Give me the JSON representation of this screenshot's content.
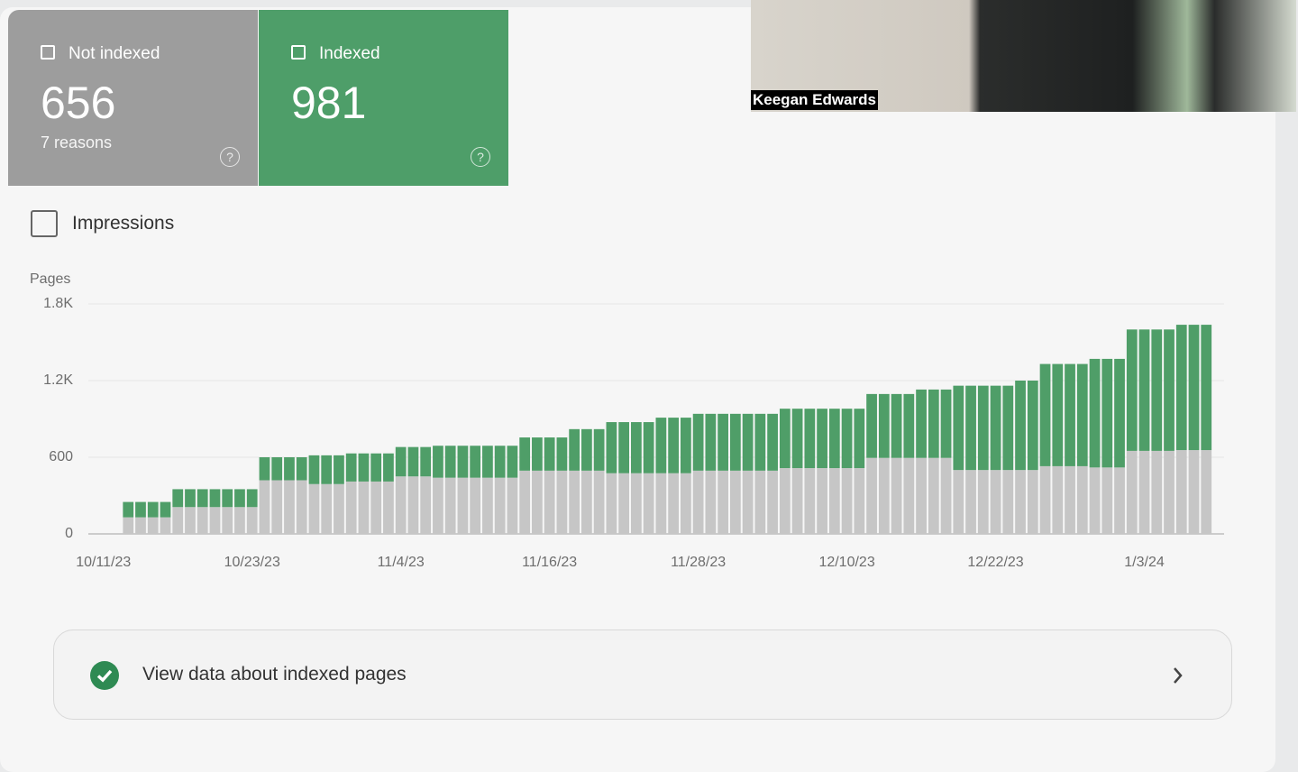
{
  "video_overlay": {
    "name": "Keegan Edwards"
  },
  "summary": {
    "not_indexed": {
      "value": 656,
      "note": "7 reasons"
    },
    "indexed": {
      "value": 981
    }
  },
  "impressions_toggle": {
    "label": "Impressions"
  },
  "chart_data": {
    "type": "stacked_bar",
    "y_axis_label": "Pages",
    "x": [
      "2023-10-13",
      "2023-10-14",
      "2023-10-15",
      "2023-10-16",
      "2023-10-17",
      "2023-10-18",
      "2023-10-19",
      "2023-10-20",
      "2023-10-21",
      "2023-10-22",
      "2023-10-23",
      "2023-10-24",
      "2023-10-25",
      "2023-10-26",
      "2023-10-27",
      "2023-10-28",
      "2023-10-29",
      "2023-10-30",
      "2023-10-31",
      "2023-11-01",
      "2023-11-02",
      "2023-11-03",
      "2023-11-04",
      "2023-11-05",
      "2023-11-06",
      "2023-11-07",
      "2023-11-08",
      "2023-11-09",
      "2023-11-10",
      "2023-11-11",
      "2023-11-12",
      "2023-11-13",
      "2023-11-14",
      "2023-11-15",
      "2023-11-16",
      "2023-11-17",
      "2023-11-18",
      "2023-11-19",
      "2023-11-20",
      "2023-11-21",
      "2023-11-22",
      "2023-11-23",
      "2023-11-24",
      "2023-11-25",
      "2023-11-26",
      "2023-11-27",
      "2023-11-28",
      "2023-11-29",
      "2023-11-30",
      "2023-12-01",
      "2023-12-02",
      "2023-12-03",
      "2023-12-04",
      "2023-12-05",
      "2023-12-06",
      "2023-12-07",
      "2023-12-08",
      "2023-12-09",
      "2023-12-10",
      "2023-12-11",
      "2023-12-12",
      "2023-12-13",
      "2023-12-14",
      "2023-12-15",
      "2023-12-16",
      "2023-12-17",
      "2023-12-18",
      "2023-12-19",
      "2023-12-20",
      "2023-12-21",
      "2023-12-22",
      "2023-12-23",
      "2023-12-24",
      "2023-12-25",
      "2023-12-26",
      "2023-12-27",
      "2023-12-28",
      "2023-12-29",
      "2023-12-30",
      "2023-12-31",
      "2024-01-01",
      "2024-01-02",
      "2024-01-03",
      "2024-01-04",
      "2024-01-05",
      "2024-01-06",
      "2024-01-07",
      "2024-01-08"
    ],
    "series": [
      {
        "name": "Not indexed",
        "color": "#c6c6c6",
        "values": [
          130,
          130,
          130,
          130,
          210,
          210,
          210,
          210,
          210,
          210,
          210,
          420,
          420,
          420,
          420,
          390,
          390,
          390,
          410,
          410,
          410,
          410,
          450,
          450,
          450,
          440,
          440,
          440,
          440,
          440,
          440,
          440,
          495,
          495,
          495,
          495,
          495,
          495,
          495,
          475,
          475,
          475,
          475,
          475,
          475,
          475,
          495,
          495,
          495,
          495,
          495,
          495,
          495,
          515,
          515,
          515,
          515,
          515,
          515,
          515,
          595,
          595,
          595,
          595,
          595,
          595,
          595,
          500,
          500,
          500,
          500,
          500,
          500,
          500,
          530,
          530,
          530,
          530,
          520,
          520,
          520,
          650,
          650,
          650,
          650,
          656,
          656,
          656
        ]
      },
      {
        "name": "Indexed",
        "color": "#4f9e68",
        "values": [
          120,
          120,
          120,
          120,
          140,
          140,
          140,
          140,
          140,
          140,
          140,
          180,
          180,
          180,
          180,
          225,
          225,
          225,
          220,
          220,
          220,
          220,
          230,
          230,
          230,
          250,
          250,
          250,
          250,
          250,
          250,
          250,
          260,
          260,
          260,
          260,
          325,
          325,
          325,
          400,
          400,
          400,
          400,
          435,
          435,
          435,
          445,
          445,
          445,
          445,
          445,
          445,
          445,
          465,
          465,
          465,
          465,
          465,
          465,
          465,
          500,
          500,
          500,
          500,
          535,
          535,
          535,
          660,
          660,
          660,
          660,
          660,
          700,
          700,
          800,
          800,
          800,
          800,
          850,
          850,
          850,
          950,
          950,
          950,
          950,
          981,
          981,
          981
        ]
      }
    ],
    "xlim": [
      "2023-10-10",
      "2024-01-09"
    ],
    "xticks": [
      {
        "value": "2023-10-11",
        "label": "10/11/23"
      },
      {
        "value": "2023-10-23",
        "label": "10/23/23"
      },
      {
        "value": "2023-11-04",
        "label": "11/4/23"
      },
      {
        "value": "2023-11-16",
        "label": "11/16/23"
      },
      {
        "value": "2023-11-28",
        "label": "11/28/23"
      },
      {
        "value": "2023-12-10",
        "label": "12/10/23"
      },
      {
        "value": "2023-12-22",
        "label": "12/22/23"
      },
      {
        "value": "2024-01-03",
        "label": "1/3/24"
      }
    ],
    "ylim": [
      0,
      1800
    ],
    "yticks": [
      0,
      600,
      {
        "value": 1200,
        "label": "1.2K"
      },
      {
        "value": 1800,
        "label": "1.8K"
      }
    ],
    "grid": true
  },
  "link": {
    "label": "View data about indexed pages"
  }
}
